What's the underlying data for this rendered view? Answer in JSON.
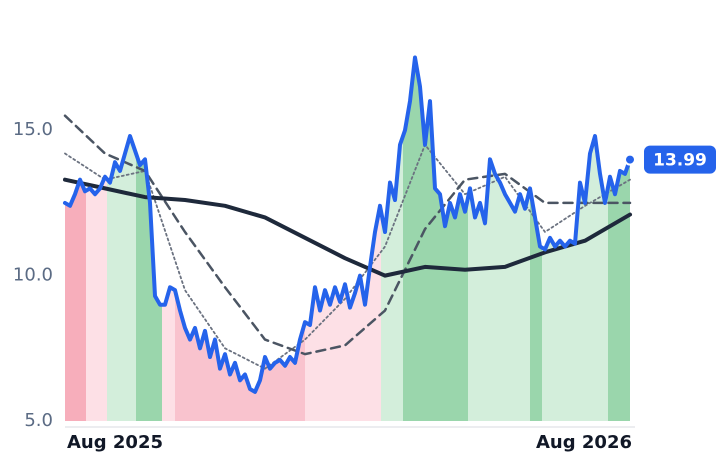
{
  "chart_data": {
    "type": "line",
    "xlim": [
      0,
      113
    ],
    "xticks": [
      {
        "value": 0,
        "label": "Aug 2025"
      },
      {
        "value": 113,
        "label": "Aug 2026"
      }
    ],
    "ylim": [
      5,
      18
    ],
    "yticks": [
      {
        "value": 5,
        "label": "5.0"
      },
      {
        "value": 10,
        "label": "10.0"
      },
      {
        "value": 15,
        "label": "15.0"
      }
    ],
    "bands": [
      {
        "start": 0,
        "end": 4.2,
        "color": "#f7aebb"
      },
      {
        "start": 4.2,
        "end": 8.4,
        "color": "#fde0e6"
      },
      {
        "start": 8.4,
        "end": 14.2,
        "color": "#d3eedb"
      },
      {
        "start": 14.2,
        "end": 19.4,
        "color": "#9ad6ac"
      },
      {
        "start": 19.4,
        "end": 22,
        "color": "#fde0e6"
      },
      {
        "start": 22,
        "end": 48,
        "color": "#f9c3ce"
      },
      {
        "start": 48,
        "end": 63.2,
        "color": "#fde0e6"
      },
      {
        "start": 63.2,
        "end": 67.6,
        "color": "#d3eedb"
      },
      {
        "start": 67.6,
        "end": 80.6,
        "color": "#9ad6ac"
      },
      {
        "start": 80.6,
        "end": 93,
        "color": "#d3eedb"
      },
      {
        "start": 93,
        "end": 95.4,
        "color": "#9ad6ac"
      },
      {
        "start": 95.4,
        "end": 108.6,
        "color": "#d3eedb"
      },
      {
        "start": 108.6,
        "end": 113,
        "color": "#9ad6ac"
      }
    ],
    "series": [
      {
        "color": "#2563eb",
        "style": "solid",
        "width": 4,
        "x": [
          0,
          1,
          2,
          3,
          4,
          5,
          6,
          7,
          8,
          9,
          10,
          11,
          12,
          13,
          14,
          15,
          16,
          17,
          18,
          19,
          20,
          21,
          22,
          23,
          24,
          25,
          26,
          27,
          28,
          29,
          30,
          31,
          32,
          33,
          34,
          35,
          36,
          37,
          38,
          39,
          40,
          41,
          42,
          43,
          44,
          45,
          46,
          47,
          48,
          49,
          50,
          51,
          52,
          53,
          54,
          55,
          56,
          57,
          58,
          59,
          60,
          61,
          62,
          63,
          64,
          65,
          66,
          67,
          68,
          69,
          70,
          71,
          72,
          73,
          74,
          75,
          76,
          77,
          78,
          79,
          80,
          81,
          82,
          83,
          84,
          85,
          86,
          87,
          88,
          89,
          90,
          91,
          92,
          93,
          94,
          95,
          96,
          97,
          98,
          99,
          100,
          101,
          102,
          103,
          104,
          105,
          106,
          107,
          108,
          109,
          110,
          111,
          112,
          113
        ],
        "values": [
          12.5,
          12.4,
          12.8,
          13.3,
          12.9,
          13.0,
          12.8,
          13.0,
          13.4,
          13.2,
          13.9,
          13.6,
          14.2,
          14.8,
          14.3,
          13.8,
          14.0,
          12.5,
          9.3,
          9.0,
          9.0,
          9.6,
          9.5,
          8.8,
          8.2,
          7.8,
          8.2,
          7.5,
          8.1,
          7.2,
          7.8,
          6.8,
          7.3,
          6.6,
          7.0,
          6.4,
          6.6,
          6.1,
          6.0,
          6.4,
          7.2,
          6.8,
          7.0,
          7.1,
          6.9,
          7.2,
          7.0,
          7.8,
          8.4,
          8.3,
          9.6,
          8.8,
          9.5,
          9.0,
          9.6,
          9.1,
          9.7,
          8.9,
          9.4,
          10.0,
          9.0,
          10.3,
          11.5,
          12.4,
          11.5,
          13.2,
          12.6,
          14.5,
          15.0,
          16.0,
          17.5,
          16.5,
          14.5,
          16.0,
          13.0,
          12.8,
          11.7,
          12.5,
          12.0,
          12.8,
          12.2,
          13.0,
          12.0,
          12.5,
          11.8,
          14.0,
          13.5,
          13.2,
          12.8,
          12.5,
          12.2,
          12.8,
          12.3,
          13.0,
          12.0,
          11.0,
          10.9,
          11.3,
          11.0,
          11.2,
          11.0,
          11.2,
          11.1,
          13.2,
          12.5,
          14.2,
          14.8,
          13.5,
          12.5,
          13.4,
          12.8,
          13.6,
          13.5,
          13.99
        ]
      },
      {
        "color": "#1e293b",
        "style": "solid",
        "width": 4,
        "x": [
          0,
          8,
          16,
          24,
          32,
          40,
          48,
          56,
          64,
          72,
          80,
          88,
          96,
          104,
          113
        ],
        "values": [
          13.3,
          13.0,
          12.7,
          12.6,
          12.4,
          12.0,
          11.3,
          10.6,
          10.0,
          10.3,
          10.2,
          10.3,
          10.8,
          11.2,
          12.1
        ]
      },
      {
        "color": "#4b5563",
        "style": "dashed",
        "width": 2.5,
        "x": [
          0,
          8,
          16,
          24,
          32,
          40,
          48,
          56,
          64,
          72,
          80,
          88,
          96,
          104,
          113
        ],
        "values": [
          15.5,
          14.2,
          13.6,
          11.5,
          9.6,
          7.8,
          7.3,
          7.6,
          8.8,
          11.6,
          13.3,
          13.5,
          12.5,
          12.5,
          12.5
        ]
      },
      {
        "color": "#6b7280",
        "style": "dotted",
        "width": 1.8,
        "x": [
          0,
          8,
          16,
          24,
          32,
          40,
          48,
          56,
          64,
          72,
          80,
          88,
          96,
          104,
          113
        ],
        "values": [
          14.2,
          13.3,
          13.6,
          9.5,
          7.5,
          6.8,
          7.8,
          9.2,
          11.0,
          14.5,
          12.8,
          13.4,
          11.5,
          12.4,
          13.3
        ]
      }
    ]
  }
}
